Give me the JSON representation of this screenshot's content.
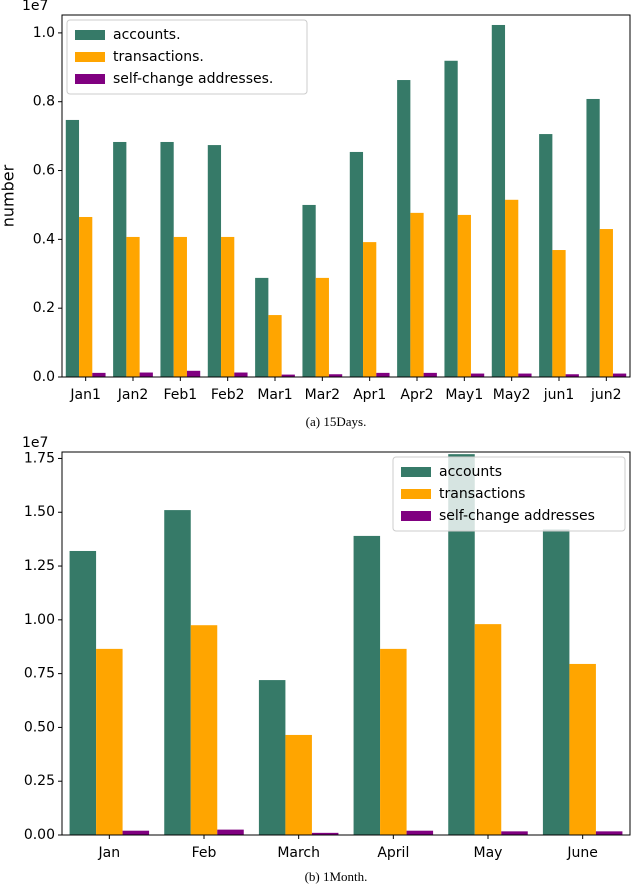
{
  "chart_data": [
    {
      "type": "bar",
      "caption": "(a) 15Days.",
      "offset_label": "1e7",
      "ylabel": "number",
      "legend": "upper left",
      "categories": [
        "Jan1",
        "Jan2",
        "Feb1",
        "Feb2",
        "Mar1",
        "Mar2",
        "Apr1",
        "Apr2",
        "May1",
        "May2",
        "jun1",
        "jun2"
      ],
      "series": [
        {
          "name": "accounts.",
          "color": "#367a68",
          "values": [
            0.747,
            0.683,
            0.683,
            0.674,
            0.288,
            0.5,
            0.654,
            0.863,
            0.919,
            1.023,
            0.706,
            0.808
          ]
        },
        {
          "name": "transactions.",
          "color": "#ffa500",
          "values": [
            0.465,
            0.407,
            0.407,
            0.407,
            0.18,
            0.288,
            0.392,
            0.477,
            0.471,
            0.515,
            0.369,
            0.43
          ]
        },
        {
          "name": "self-change addresses.",
          "color": "#800080",
          "values": [
            0.012,
            0.013,
            0.018,
            0.013,
            0.007,
            0.008,
            0.012,
            0.012,
            0.01,
            0.01,
            0.008,
            0.01
          ]
        }
      ],
      "ylim": [
        0,
        1.052
      ],
      "yticks": [
        {
          "value": 0,
          "label": "0.0"
        },
        0.2,
        0.4,
        0.6,
        0.8,
        {
          "value": 1,
          "label": "1.0"
        }
      ]
    },
    {
      "type": "bar",
      "caption": "(b) 1Month.",
      "offset_label": "1e7",
      "legend": "upper right",
      "categories": [
        "Jan",
        "Feb",
        "March",
        "April",
        "May",
        "June"
      ],
      "series": [
        {
          "name": "accounts",
          "color": "#367a68",
          "values": [
            1.32,
            1.51,
            0.72,
            1.39,
            1.77,
            1.42
          ]
        },
        {
          "name": "transactions",
          "color": "#ffa500",
          "values": [
            0.865,
            0.975,
            0.465,
            0.865,
            0.98,
            0.795
          ]
        },
        {
          "name": "self-change addresses",
          "color": "#800080",
          "values": [
            0.02,
            0.025,
            0.01,
            0.02,
            0.017,
            0.017
          ]
        }
      ],
      "ylim": [
        0,
        1.78
      ],
      "yticks": [
        {
          "value": 0,
          "label": "0.00"
        },
        0.25,
        {
          "value": 0.5,
          "label": "0.50"
        },
        0.75,
        {
          "value": 1,
          "label": "1.00"
        },
        1.25,
        {
          "value": 1.5,
          "label": "1.50"
        },
        1.75
      ]
    }
  ]
}
